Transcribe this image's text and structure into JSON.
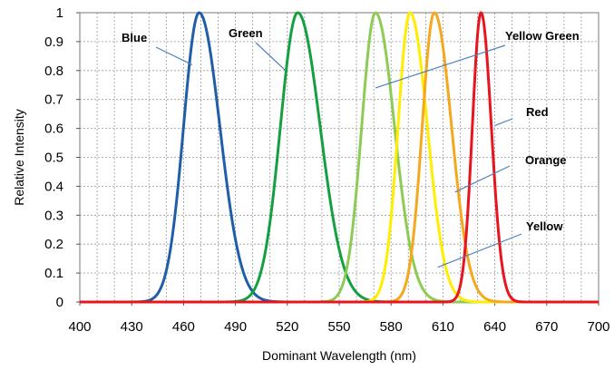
{
  "chart_data": {
    "type": "line",
    "title": "",
    "xlabel": "Dominant Wavelength (nm)",
    "ylabel": "Relative Intensity",
    "xlim": [
      400,
      700
    ],
    "ylim": [
      0,
      1
    ],
    "x_ticks": [
      "400",
      "430",
      "460",
      "490",
      "520",
      "550",
      "580",
      "610",
      "640",
      "670",
      "700"
    ],
    "y_ticks": [
      "0",
      "0.1",
      "0.2",
      "0.3",
      "0.4",
      "0.5",
      "0.6",
      "0.7",
      "0.8",
      "0.9",
      "1"
    ],
    "x_grid_step": 10,
    "grid": true,
    "series": [
      {
        "name": "Blue",
        "color": "#1f5fa8",
        "peak": 469,
        "width_left": 9,
        "width_right": 12
      },
      {
        "name": "Green",
        "color": "#14a040",
        "peak": 526,
        "width_left": 10,
        "width_right": 13
      },
      {
        "name": "Yellow Green",
        "color": "#8ecb55",
        "peak": 571,
        "width_left": 8,
        "width_right": 11
      },
      {
        "name": "Yellow",
        "color": "#ffee00",
        "peak": 591,
        "width_left": 7,
        "width_right": 10
      },
      {
        "name": "Orange",
        "color": "#f5a81e",
        "peak": 605,
        "width_left": 7,
        "width_right": 10
      },
      {
        "name": "Red",
        "color": "#e8141e",
        "peak": 632,
        "width_left": 5,
        "width_right": 6
      }
    ],
    "labels": [
      {
        "text": "Blue",
        "points_to": [
          465,
          0.82
        ]
      },
      {
        "text": "Green",
        "points_to": [
          519,
          0.8
        ]
      },
      {
        "text": "Yellow Green",
        "points_to": [
          571,
          0.74
        ]
      },
      {
        "text": "Red",
        "points_to": [
          640,
          0.61
        ]
      },
      {
        "text": "Orange",
        "points_to": [
          617,
          0.38
        ]
      },
      {
        "text": "Yellow",
        "points_to": [
          607,
          0.12
        ]
      }
    ]
  }
}
